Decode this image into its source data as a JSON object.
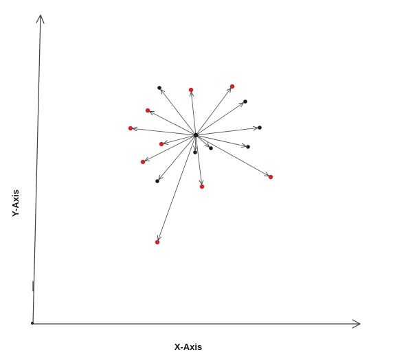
{
  "axes": {
    "x_label": "X-Axis",
    "y_label": "Y-Axis"
  },
  "colors": {
    "red_point": "#d42020",
    "black_point": "#1a1a1a",
    "line": "#555555"
  },
  "diagram": {
    "type": "vector-fan",
    "origin_color": "black",
    "endpoint_colors": [
      "black",
      "red",
      "red",
      "black",
      "red",
      "red",
      "black",
      "red",
      "red",
      "black",
      "black",
      "red",
      "black",
      "red",
      "black",
      "red"
    ]
  }
}
